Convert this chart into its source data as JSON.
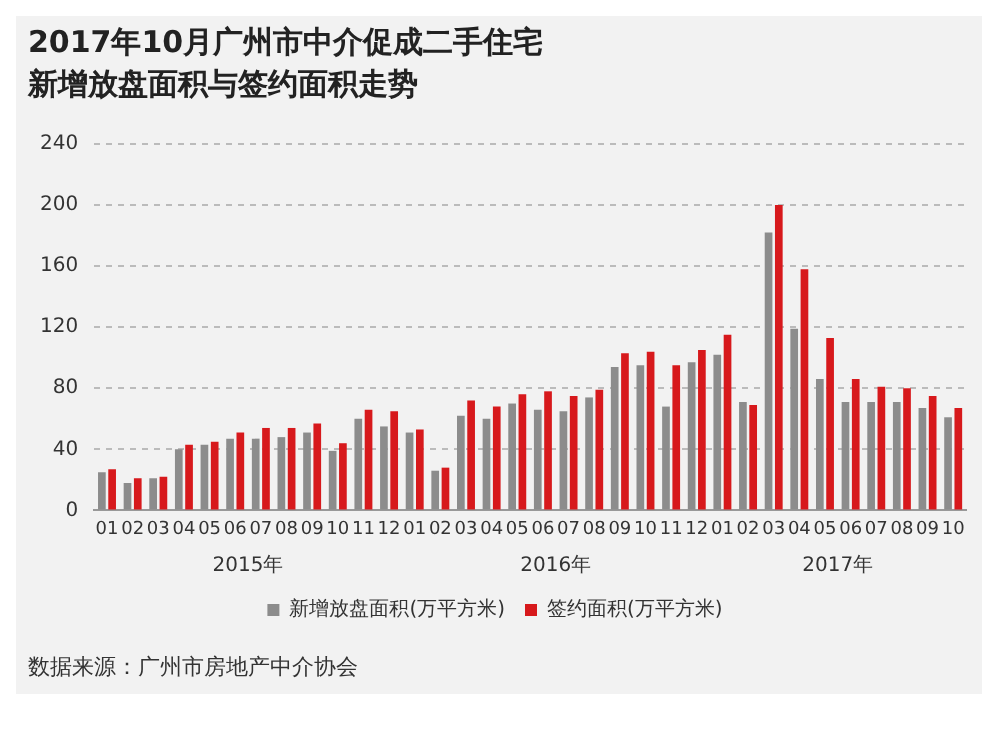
{
  "chart_data": {
    "type": "bar",
    "title": "2017年10月广州市中介促成二手住宅",
    "subtitle": "新增放盘面积与签约面积走势",
    "categories": [
      "01",
      "02",
      "03",
      "04",
      "05",
      "06",
      "07",
      "08",
      "09",
      "10",
      "11",
      "12",
      "01",
      "02",
      "03",
      "04",
      "05",
      "06",
      "07",
      "08",
      "09",
      "10",
      "11",
      "12",
      "01",
      "02",
      "03",
      "04",
      "05",
      "06",
      "07",
      "08",
      "09",
      "10"
    ],
    "series": [
      {
        "name": "新增放盘面积(万平方米)",
        "color": "#8c8c8c",
        "values": [
          25,
          18,
          21,
          40,
          43,
          47,
          47,
          48,
          51,
          39,
          60,
          55,
          51,
          26,
          62,
          60,
          70,
          66,
          65,
          74,
          94,
          95,
          68,
          97,
          102,
          71,
          182,
          119,
          86,
          71,
          71,
          71,
          67,
          61
        ]
      },
      {
        "name": "签约面积(万平方米)",
        "color": "#d7191c",
        "values": [
          27,
          21,
          22,
          43,
          45,
          51,
          54,
          54,
          57,
          44,
          66,
          65,
          53,
          28,
          72,
          68,
          76,
          78,
          75,
          79,
          103,
          104,
          95,
          105,
          115,
          69,
          200,
          158,
          113,
          86,
          81,
          80,
          75,
          67
        ]
      }
    ],
    "ylim": [
      0,
      240
    ],
    "yticks": [
      0,
      40,
      80,
      120,
      160,
      200,
      240
    ],
    "grid": "y",
    "legend": "bottom",
    "annotations": [
      "2015年",
      "2016年",
      "2017年",
      "数据来源：广州市房地产中介协会"
    ]
  }
}
